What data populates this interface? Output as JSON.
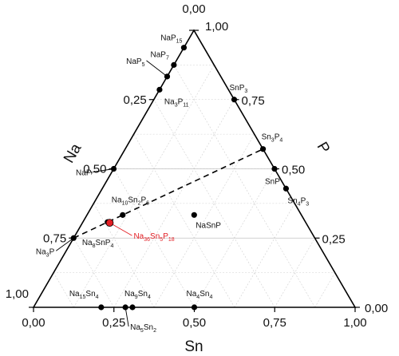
{
  "chart_data": {
    "type": "ternary",
    "axes": {
      "bottom": {
        "label": "Sn"
      },
      "left": {
        "label": "Na"
      },
      "right": {
        "label": "P"
      }
    },
    "ticks": {
      "bottom": [
        "0,00",
        "0,25",
        "0,50",
        "0,75",
        "1,00"
      ],
      "left": [
        "0,00",
        "0,25",
        "0,50",
        "0,75",
        "1,00"
      ],
      "right": [
        "0,00",
        "0,25",
        "0,50",
        "0,75",
        "1,00"
      ]
    },
    "grid": true,
    "tie_line": {
      "style": "dashed",
      "from": "Na3P",
      "to": "Sn3P4"
    },
    "points": [
      {
        "id": "NaP15",
        "label": [
          [
            "NaP",
            ""
          ],
          [
            "15",
            "sub"
          ]
        ],
        "na": 0.0625,
        "sn": 0.0,
        "p": 0.9375,
        "highlight": false
      },
      {
        "id": "NaP7",
        "label": [
          [
            "NaP",
            ""
          ],
          [
            "7",
            "sub"
          ]
        ],
        "na": 0.125,
        "sn": 0.0,
        "p": 0.875,
        "highlight": false
      },
      {
        "id": "NaP5",
        "label": [
          [
            "NaP",
            ""
          ],
          [
            "5",
            "sub"
          ]
        ],
        "na": 0.1667,
        "sn": 0.0,
        "p": 0.8333,
        "highlight": false
      },
      {
        "id": "Na3P11",
        "label": [
          [
            "Na",
            ""
          ],
          [
            "3",
            "sub"
          ],
          [
            "P",
            ""
          ],
          [
            "11",
            "sub"
          ]
        ],
        "na": 0.2143,
        "sn": 0.0,
        "p": 0.7857,
        "highlight": false
      },
      {
        "id": "NaP",
        "label": [
          [
            "NaP",
            ""
          ]
        ],
        "na": 0.5,
        "sn": 0.0,
        "p": 0.5,
        "highlight": false
      },
      {
        "id": "Na3P",
        "label": [
          [
            "Na",
            ""
          ],
          [
            "3",
            "sub"
          ],
          [
            "P",
            ""
          ]
        ],
        "na": 0.75,
        "sn": 0.0,
        "p": 0.25,
        "highlight": false
      },
      {
        "id": "SnP3",
        "label": [
          [
            "SnP",
            ""
          ],
          [
            "3",
            "sub"
          ]
        ],
        "na": 0.0,
        "sn": 0.25,
        "p": 0.75,
        "highlight": false
      },
      {
        "id": "Sn3P4",
        "label": [
          [
            "Sn",
            ""
          ],
          [
            "3",
            "sub"
          ],
          [
            "P",
            ""
          ],
          [
            "4",
            "sub"
          ]
        ],
        "na": 0.0,
        "sn": 0.4286,
        "p": 0.5714,
        "highlight": false
      },
      {
        "id": "SnP",
        "label": [
          [
            "SnP",
            ""
          ]
        ],
        "na": 0.0,
        "sn": 0.5,
        "p": 0.5,
        "highlight": false
      },
      {
        "id": "Sn4P3",
        "label": [
          [
            "Sn",
            ""
          ],
          [
            "4",
            "sub"
          ],
          [
            "P",
            ""
          ],
          [
            "3",
            "sub"
          ]
        ],
        "na": 0.0,
        "sn": 0.5714,
        "p": 0.4286,
        "highlight": false
      },
      {
        "id": "Na10Sn2P6",
        "label": [
          [
            "Na",
            ""
          ],
          [
            "10",
            "sub"
          ],
          [
            "Sn",
            ""
          ],
          [
            "2",
            "sub"
          ],
          [
            "P",
            ""
          ],
          [
            "6",
            "sub"
          ]
        ],
        "na": 0.5556,
        "sn": 0.1111,
        "p": 0.3333,
        "highlight": false
      },
      {
        "id": "NaSnP",
        "label": [
          [
            "NaSnP",
            ""
          ]
        ],
        "na": 0.3333,
        "sn": 0.3333,
        "p": 0.3333,
        "highlight": false
      },
      {
        "id": "Na8SnP4",
        "label": [
          [
            "Na",
            ""
          ],
          [
            "8",
            "sub"
          ],
          [
            "SnP",
            ""
          ],
          [
            "4",
            "sub"
          ]
        ],
        "na": 0.6154,
        "sn": 0.0769,
        "p": 0.3077,
        "highlight": false
      },
      {
        "id": "Na36Sn5P18",
        "label": [
          [
            "Na",
            ""
          ],
          [
            "36",
            "sub"
          ],
          [
            "Sn",
            ""
          ],
          [
            "5",
            "sub"
          ],
          [
            "P",
            ""
          ],
          [
            "18",
            "sub"
          ]
        ],
        "na": 0.6102,
        "sn": 0.0847,
        "p": 0.3051,
        "highlight": true
      },
      {
        "id": "Na15Sn4",
        "label": [
          [
            "Na",
            ""
          ],
          [
            "15",
            "sub"
          ],
          [
            "Sn",
            ""
          ],
          [
            "4",
            "sub"
          ]
        ],
        "na": 0.7895,
        "sn": 0.2105,
        "p": 0.0,
        "highlight": false
      },
      {
        "id": "Na5Sn2",
        "label": [
          [
            "Na",
            ""
          ],
          [
            "5",
            "sub"
          ],
          [
            "Sn",
            ""
          ],
          [
            "2",
            "sub"
          ]
        ],
        "na": 0.7143,
        "sn": 0.2857,
        "p": 0.0,
        "highlight": false
      },
      {
        "id": "Na9Sn4",
        "label": [
          [
            "Na",
            ""
          ],
          [
            "9",
            "sub"
          ],
          [
            "Sn",
            ""
          ],
          [
            "4",
            "sub"
          ]
        ],
        "na": 0.6923,
        "sn": 0.3077,
        "p": 0.0,
        "highlight": false
      },
      {
        "id": "Na4Sn4",
        "label": [
          [
            "Na",
            ""
          ],
          [
            "4",
            "sub"
          ],
          [
            "Sn",
            ""
          ],
          [
            "4",
            "sub"
          ]
        ],
        "na": 0.5,
        "sn": 0.5,
        "p": 0.0,
        "highlight": false
      }
    ]
  }
}
